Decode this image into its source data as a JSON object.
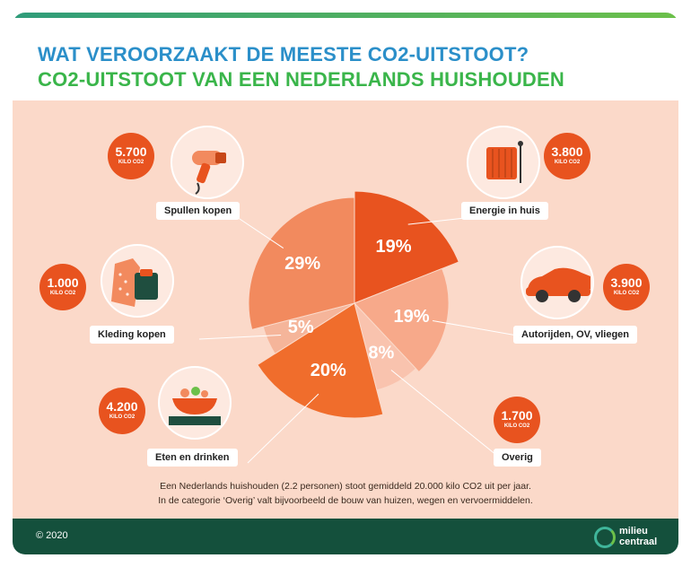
{
  "header": {
    "title": "WAT VEROORZAAKT DE MEESTE CO2-UITSTOOT?",
    "subtitle": "CO2-UITSTOOT VAN EEN NEDERLANDS HUISHOUDEN"
  },
  "chart_data": {
    "type": "pie",
    "title": "WAT VEROORZAAKT DE MEESTE CO2-UITSTOOT?",
    "subtitle": "CO2-UITSTOOT VAN EEN NEDERLANDS HUISHOUDEN",
    "unit": "KILO CO2",
    "slices": [
      {
        "label": "Energie in huis",
        "percent": 19,
        "percent_text": "19%",
        "value": 3800,
        "value_text": "3.800",
        "color": "#e8531f",
        "icon": "radiator-icon"
      },
      {
        "label": "Autorijden, OV, vliegen",
        "percent": 19,
        "percent_text": "19%",
        "value": 3900,
        "value_text": "3.900",
        "color": "#f7a98a",
        "icon": "car-icon"
      },
      {
        "label": "Overig",
        "percent": 8,
        "percent_text": "8%",
        "value": 1700,
        "value_text": "1.700",
        "color": "#f9c3ae",
        "icon": ""
      },
      {
        "label": "Eten en drinken",
        "percent": 20,
        "percent_text": "20%",
        "value": 4200,
        "value_text": "4.200",
        "color": "#f06d2c",
        "icon": "salad-bowl-icon"
      },
      {
        "label": "Kleding kopen",
        "percent": 5,
        "percent_text": "5%",
        "value": 1000,
        "value_text": "1.000",
        "color": "#f5b59a",
        "icon": "clothing-icon"
      },
      {
        "label": "Spullen kopen",
        "percent": 29,
        "percent_text": "29%",
        "value": 5700,
        "value_text": "5.700",
        "color": "#f28a5e",
        "icon": "hairdryer-icon"
      }
    ]
  },
  "notes": {
    "line1": "Een Nederlands huishouden (2.2 personen) stoot gemiddeld 20.000 kilo CO2 uit per jaar.",
    "line2": "In de categorie ‘Overig’ valt bijvoorbeeld de bouw van huizen, wegen en vervoermiddelen."
  },
  "footer": {
    "copyright": "© 2020",
    "logo_line1": "milieu",
    "logo_line2": "centraal"
  },
  "colors": {
    "panel": "#fbd9c9",
    "footer": "#14503c",
    "accent": "#e8531f",
    "title1": "#2b8fc9",
    "title2": "#3ab54a"
  }
}
